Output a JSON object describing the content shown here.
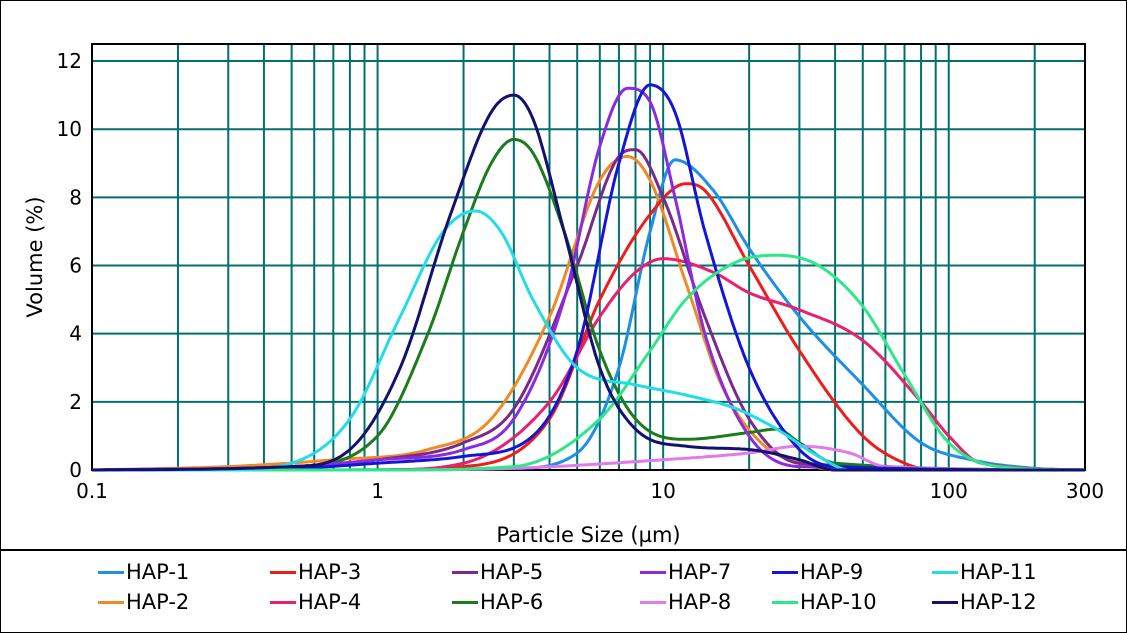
{
  "chart_data": {
    "type": "line",
    "xlabel": "Particle Size (µm)",
    "ylabel": "Volume (%)",
    "x_scale": "log",
    "xlim": [
      0.1,
      300
    ],
    "ylim": [
      0,
      12.5
    ],
    "x_ticks": [
      0.1,
      1,
      10,
      100,
      300
    ],
    "x_tick_labels": [
      "0.1",
      "1",
      "10",
      "100",
      "300"
    ],
    "y_ticks": [
      0,
      2,
      4,
      6,
      8,
      10,
      12
    ],
    "y_tick_labels": [
      "0",
      "2",
      "4",
      "6",
      "8",
      "10",
      "12"
    ],
    "grid": true,
    "grid_color": "#007070",
    "legend_position": "bottom",
    "series": [
      {
        "name": "HAP-1",
        "color": "#1e8fe6",
        "x": [
          0.1,
          0.5,
          3,
          5,
          7,
          9,
          11,
          15,
          20,
          30,
          50,
          80,
          120,
          200,
          300
        ],
        "y": [
          0,
          0,
          0.05,
          0.5,
          3,
          7,
          9.1,
          8.2,
          6.5,
          4.5,
          2.5,
          0.8,
          0.3,
          0.05,
          0
        ]
      },
      {
        "name": "HAP-2",
        "color": "#f08a24",
        "x": [
          0.1,
          0.3,
          0.7,
          1.5,
          2.5,
          4,
          6,
          7.5,
          9,
          12,
          16,
          22,
          30,
          45,
          300
        ],
        "y": [
          0,
          0.1,
          0.3,
          0.6,
          1.5,
          4.5,
          8.5,
          9.2,
          8.5,
          5.5,
          2.5,
          0.8,
          0.2,
          0,
          0
        ]
      },
      {
        "name": "HAP-3",
        "color": "#ee1c1c",
        "x": [
          0.1,
          0.8,
          2,
          4,
          6,
          9,
          12,
          14,
          20,
          30,
          50,
          70,
          90,
          300
        ],
        "y": [
          0,
          0,
          0.1,
          1.5,
          5,
          7.5,
          8.4,
          8.2,
          6,
          3.5,
          1,
          0.2,
          0,
          0
        ]
      },
      {
        "name": "HAP-4",
        "color": "#e8206e",
        "x": [
          0.1,
          1,
          2,
          4,
          6,
          8,
          10,
          15,
          20,
          30,
          50,
          80,
          100,
          130,
          300
        ],
        "y": [
          0,
          0,
          0.2,
          2,
          4.5,
          5.8,
          6.2,
          5.8,
          5.2,
          4.7,
          3.8,
          2,
          1,
          0.2,
          0
        ]
      },
      {
        "name": "HAP-5",
        "color": "#7a2a8a",
        "x": [
          0.1,
          0.5,
          1,
          2,
          3,
          5,
          7,
          8,
          10,
          14,
          20,
          30,
          300
        ],
        "y": [
          0,
          0.1,
          0.3,
          0.8,
          1.8,
          6,
          9.2,
          9.4,
          8,
          4.5,
          1.5,
          0.2,
          0
        ]
      },
      {
        "name": "HAP-6",
        "color": "#1e7a1e",
        "x": [
          0.1,
          0.5,
          1,
          1.5,
          2,
          2.5,
          3,
          3.5,
          4.5,
          6,
          8,
          12,
          20,
          25,
          30,
          40,
          300
        ],
        "y": [
          0,
          0.1,
          1,
          4,
          7,
          9,
          9.7,
          9.3,
          7,
          3.5,
          1.5,
          0.9,
          1.1,
          1.2,
          0.8,
          0.2,
          0
        ]
      },
      {
        "name": "HAP-7",
        "color": "#8a2be2",
        "x": [
          0.1,
          0.5,
          1,
          2,
          3,
          4.5,
          6,
          7.5,
          9,
          11,
          14,
          20,
          30,
          300
        ],
        "y": [
          0,
          0.1,
          0.3,
          0.6,
          1.5,
          5,
          9.5,
          11.2,
          10.8,
          8,
          4,
          1,
          0.1,
          0
        ]
      },
      {
        "name": "HAP-8",
        "color": "#e27aea",
        "x": [
          0.1,
          1,
          3,
          10,
          20,
          30,
          45,
          60,
          300
        ],
        "y": [
          0,
          0,
          0.05,
          0.3,
          0.5,
          0.7,
          0.5,
          0.1,
          0
        ]
      },
      {
        "name": "HAP-9",
        "color": "#1515d5",
        "x": [
          0.1,
          0.5,
          1,
          2,
          3.5,
          5,
          7,
          9,
          11,
          14,
          20,
          30,
          40,
          300
        ],
        "y": [
          0,
          0.05,
          0.2,
          0.4,
          1,
          3.5,
          9,
          11.3,
          10.5,
          7,
          3,
          0.6,
          0.1,
          0
        ]
      },
      {
        "name": "HAP-10",
        "color": "#2ee888",
        "x": [
          0.1,
          1,
          3,
          6,
          9,
          12,
          18,
          25,
          35,
          50,
          70,
          100,
          150,
          300
        ],
        "y": [
          0,
          0,
          0.1,
          1.5,
          3.5,
          5,
          6.1,
          6.3,
          6,
          4.8,
          2.8,
          0.8,
          0.1,
          0
        ]
      },
      {
        "name": "HAP-11",
        "color": "#22dde8",
        "x": [
          0.1,
          0.3,
          0.5,
          0.8,
          1.2,
          1.7,
          2.2,
          2.7,
          3.5,
          5,
          8,
          12,
          18,
          25,
          35,
          45,
          300
        ],
        "y": [
          0,
          0,
          0.2,
          1.5,
          4.5,
          7,
          7.6,
          7,
          5,
          3,
          2.5,
          2.2,
          1.8,
          1.2,
          0.4,
          0,
          0
        ]
      },
      {
        "name": "HAP-12",
        "color": "#12126e",
        "x": [
          0.1,
          0.5,
          0.8,
          1.2,
          1.8,
          2.5,
          3,
          3.5,
          4.5,
          6,
          8,
          12,
          20,
          30,
          40,
          300
        ],
        "y": [
          0,
          0.1,
          0.6,
          3,
          7.5,
          10.5,
          11,
          10.3,
          7,
          3,
          1.2,
          0.7,
          0.6,
          0.3,
          0,
          0
        ]
      }
    ]
  }
}
